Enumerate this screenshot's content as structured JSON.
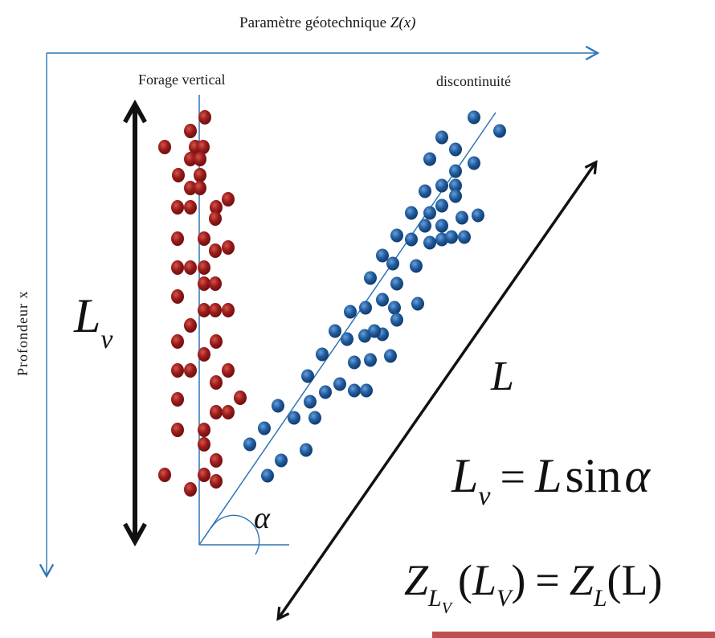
{
  "labels": {
    "x_axis_text": "Paramètre géotechnique ",
    "x_axis_math": "Z(x)",
    "y_axis": "Profondeur x",
    "borehole": "Forage vertical",
    "discontinuity": "discontinuité"
  },
  "math": {
    "Lv_main": "L",
    "Lv_main_sub": "v",
    "L_main": "L",
    "formula1": {
      "lhs": "L",
      "lhs_sub": "v",
      "eq": "=",
      "rhs_L": "L",
      "rhs_sin": "sin",
      "rhs_alpha": "α"
    },
    "alpha": "α",
    "formula2": {
      "z1": "Z",
      "z1_sub": "L",
      "z1_subsub": "V",
      "arg1_open": "(",
      "arg1_L": "L",
      "arg1_sub": "V",
      "arg1_close": ")",
      "eq": "=",
      "z2": "Z",
      "z2_sub": "L",
      "arg2": "(L)"
    }
  },
  "colors": {
    "axis": "#2e75b6",
    "red_dot": "#9b1a1a",
    "red_dot_hi": "#c94a3a",
    "blue_dot": "#1f5b9e",
    "blue_dot_hi": "#5b93cf",
    "arrow": "#111111",
    "underline": "#c0504d"
  },
  "red_points": [
    [
      255,
      146
    ],
    [
      237,
      163
    ],
    [
      205,
      183
    ],
    [
      243,
      183
    ],
    [
      253,
      183
    ],
    [
      237,
      198
    ],
    [
      249,
      198
    ],
    [
      222,
      218
    ],
    [
      249,
      218
    ],
    [
      237,
      234
    ],
    [
      249,
      234
    ],
    [
      284,
      248
    ],
    [
      221,
      258
    ],
    [
      237,
      258
    ],
    [
      269,
      258
    ],
    [
      268,
      272
    ],
    [
      221,
      297
    ],
    [
      254,
      297
    ],
    [
      284,
      308
    ],
    [
      268,
      312
    ],
    [
      221,
      333
    ],
    [
      237,
      333
    ],
    [
      254,
      333
    ],
    [
      254,
      353
    ],
    [
      268,
      353
    ],
    [
      221,
      369
    ],
    [
      237,
      405
    ],
    [
      254,
      386
    ],
    [
      268,
      386
    ],
    [
      284,
      386
    ],
    [
      221,
      425
    ],
    [
      269,
      425
    ],
    [
      254,
      441
    ],
    [
      221,
      461
    ],
    [
      237,
      461
    ],
    [
      284,
      461
    ],
    [
      269,
      476
    ],
    [
      299,
      495
    ],
    [
      221,
      497
    ],
    [
      269,
      513
    ],
    [
      284,
      513
    ],
    [
      221,
      535
    ],
    [
      254,
      535
    ],
    [
      254,
      553
    ],
    [
      269,
      573
    ],
    [
      205,
      591
    ],
    [
      254,
      591
    ],
    [
      269,
      599
    ],
    [
      237,
      609
    ]
  ],
  "blue_points": [
    [
      590,
      146
    ],
    [
      622,
      163
    ],
    [
      550,
      171
    ],
    [
      567,
      186
    ],
    [
      535,
      198
    ],
    [
      590,
      203
    ],
    [
      567,
      213
    ],
    [
      550,
      231
    ],
    [
      567,
      231
    ],
    [
      567,
      244
    ],
    [
      529,
      238
    ],
    [
      550,
      256
    ],
    [
      535,
      265
    ],
    [
      512,
      265
    ],
    [
      529,
      281
    ],
    [
      550,
      281
    ],
    [
      575,
      271
    ],
    [
      595,
      268
    ],
    [
      512,
      298
    ],
    [
      550,
      298
    ],
    [
      562,
      295
    ],
    [
      578,
      295
    ],
    [
      535,
      302
    ],
    [
      494,
      293
    ],
    [
      476,
      318
    ],
    [
      489,
      328
    ],
    [
      518,
      331
    ],
    [
      461,
      346
    ],
    [
      494,
      353
    ],
    [
      476,
      373
    ],
    [
      455,
      383
    ],
    [
      436,
      388
    ],
    [
      491,
      383
    ],
    [
      520,
      378
    ],
    [
      494,
      398
    ],
    [
      476,
      416
    ],
    [
      454,
      418
    ],
    [
      417,
      412
    ],
    [
      432,
      422
    ],
    [
      466,
      412
    ],
    [
      401,
      441
    ],
    [
      486,
      443
    ],
    [
      461,
      448
    ],
    [
      441,
      451
    ],
    [
      423,
      478
    ],
    [
      441,
      486
    ],
    [
      456,
      486
    ],
    [
      383,
      468
    ],
    [
      405,
      488
    ],
    [
      346,
      505
    ],
    [
      386,
      500
    ],
    [
      392,
      520
    ],
    [
      366,
      520
    ],
    [
      329,
      533
    ],
    [
      311,
      553
    ],
    [
      381,
      560
    ],
    [
      350,
      573
    ],
    [
      333,
      592
    ]
  ]
}
